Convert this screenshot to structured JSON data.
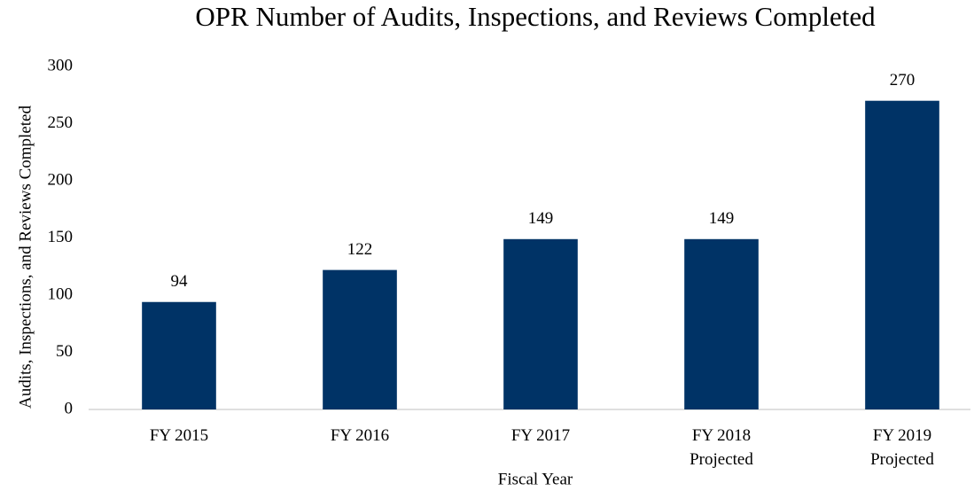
{
  "chart_data": {
    "type": "bar",
    "title": "OPR Number of Audits, Inspections, and Reviews Completed",
    "x_label": "Fiscal Year",
    "y_label": "Audits, Inspections, and Reviews Completed",
    "categories": [
      "FY 2015",
      "FY 2016",
      "FY 2017",
      "FY 2018\nProjected",
      "FY 2019\nProjected"
    ],
    "values": [
      94,
      122,
      149,
      149,
      270
    ],
    "color": "#003366",
    "ylim": [
      0,
      300
    ],
    "yticks": [
      0,
      50,
      100,
      150,
      200,
      250,
      300
    ],
    "grid": false
  }
}
